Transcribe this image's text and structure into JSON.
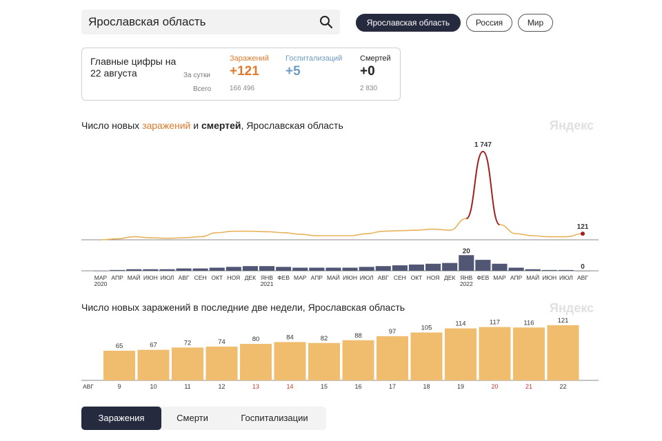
{
  "search": {
    "value": "Ярославская область"
  },
  "regions": [
    "Ярославская область",
    "Россия",
    "Мир"
  ],
  "summary": {
    "title": "Главные цифры на 22 августа",
    "per_day_label": "За сутки",
    "total_label": "Всего",
    "metrics": [
      {
        "label": "Заражений",
        "value": "+121",
        "total": "166 496",
        "color": "#e07a2c"
      },
      {
        "label": "Госпитализаций",
        "value": "+5",
        "total": "",
        "color": "#6e9cc4"
      },
      {
        "label": "Смертей",
        "value": "+0",
        "total": "2 830",
        "color": "#222222"
      }
    ]
  },
  "chart1": {
    "title_pre": "Число новых ",
    "title_inf": "заражений",
    "title_mid": " и ",
    "title_dth": "смертей",
    "title_post": ", Ярославская область",
    "watermark": "Яндекс"
  },
  "chart2": {
    "title": "Число новых заражений в последние две недели, Ярославская область",
    "watermark": "Яндекс"
  },
  "tabs": [
    "Заражения",
    "Смерти",
    "Госпитализации"
  ],
  "colors": {
    "infections": "#e8b25a",
    "infections_peak": "#a02020",
    "deaths": "#505674",
    "bars": "#f0bc6e",
    "weekend": "#c0392b"
  },
  "chart_data": [
    {
      "type": "line",
      "series_role": "infections",
      "x_tick_labels": [
        "МАР",
        "АПР",
        "МАЙ",
        "ИЮН",
        "ИЮЛ",
        "АВГ",
        "СЕН",
        "ОКТ",
        "НОЯ",
        "ДЕК",
        "ЯНВ",
        "ФЕВ",
        "МАР",
        "АПР",
        "МАЙ",
        "ИЮН",
        "ИЮЛ",
        "АВГ",
        "СЕН",
        "ОКТ",
        "НОЯ",
        "ДЕК",
        "ЯНВ",
        "ФЕВ",
        "МАР",
        "АПР",
        "МАЙ",
        "ИЮН",
        "ИЮЛ",
        "АВГ"
      ],
      "year_labels": [
        {
          "month": "МАР",
          "year": "2020"
        },
        {
          "month": "ЯНВ",
          "year": "2021"
        },
        {
          "month": "ЯНВ",
          "year": "2022"
        }
      ],
      "x": [
        "2020-03",
        "2020-04",
        "2020-05",
        "2020-06",
        "2020-07",
        "2020-08",
        "2020-09",
        "2020-10",
        "2020-11",
        "2020-12",
        "2021-01",
        "2021-02",
        "2021-03",
        "2021-04",
        "2021-05",
        "2021-06",
        "2021-07",
        "2021-08",
        "2021-09",
        "2021-10",
        "2021-11",
        "2021-12",
        "2022-01",
        "2022-02",
        "2022-03",
        "2022-04",
        "2022-05",
        "2022-06",
        "2022-07",
        "2022-08"
      ],
      "values": [
        0,
        20,
        60,
        40,
        30,
        40,
        60,
        140,
        170,
        170,
        160,
        140,
        110,
        80,
        80,
        80,
        120,
        170,
        180,
        190,
        210,
        190,
        420,
        1747,
        300,
        120,
        80,
        60,
        60,
        121
      ],
      "annotations": [
        {
          "x": "2022-02",
          "label": "1 747"
        },
        {
          "x": "2022-08",
          "label": "121"
        }
      ],
      "ylim": [
        0,
        1800
      ]
    },
    {
      "type": "bar",
      "series_role": "deaths",
      "x": [
        "2020-03",
        "2020-04",
        "2020-05",
        "2020-06",
        "2020-07",
        "2020-08",
        "2020-09",
        "2020-10",
        "2020-11",
        "2020-12",
        "2021-01",
        "2021-02",
        "2021-03",
        "2021-04",
        "2021-05",
        "2021-06",
        "2021-07",
        "2021-08",
        "2021-09",
        "2021-10",
        "2021-11",
        "2021-12",
        "2022-01",
        "2022-02",
        "2022-03",
        "2022-04",
        "2022-05",
        "2022-06",
        "2022-07",
        "2022-08"
      ],
      "values": [
        0,
        1,
        2,
        2,
        2,
        3,
        3,
        4,
        5,
        6,
        6,
        5,
        4,
        4,
        4,
        4,
        5,
        6,
        7,
        8,
        9,
        10,
        20,
        14,
        9,
        4,
        2,
        1,
        1,
        0
      ],
      "annotations": [
        {
          "x": "2022-01",
          "label": "20"
        },
        {
          "x": "2022-08",
          "label": "0"
        }
      ],
      "ylim": [
        0,
        22
      ]
    },
    {
      "type": "bar",
      "categories": [
        "9",
        "10",
        "11",
        "12",
        "13",
        "14",
        "15",
        "16",
        "17",
        "18",
        "19",
        "20",
        "21",
        "22"
      ],
      "values": [
        65,
        67,
        72,
        74,
        80,
        84,
        82,
        88,
        97,
        105,
        114,
        117,
        116,
        121
      ],
      "weekend": [
        false,
        false,
        false,
        false,
        true,
        true,
        false,
        false,
        false,
        false,
        false,
        true,
        true,
        false
      ],
      "month_label": "АВГ",
      "ylim": [
        0,
        130
      ]
    }
  ]
}
